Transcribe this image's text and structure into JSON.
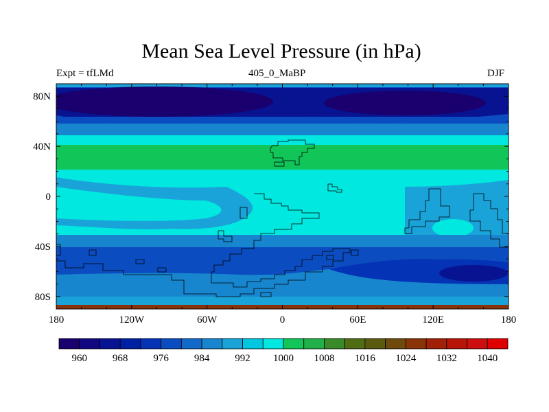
{
  "title": "Mean Sea Level Pressure (in hPa)",
  "subtitle_left": "Expt = tfLMd",
  "subtitle_center": "405_0_MaBP",
  "subtitle_right": "DJF",
  "map": {
    "projection": "cylindrical-equidistant",
    "lon_range": [
      -180,
      180
    ],
    "lat_range": [
      -90,
      90
    ],
    "x_tick_labels": [
      "180",
      "120W",
      "60W",
      "0",
      "60E",
      "120E",
      "180"
    ],
    "y_tick_labels": [
      "80N",
      "40N",
      "0",
      "40S",
      "80S"
    ],
    "field": "mean sea level pressure",
    "units": "hPa"
  },
  "colorbar": {
    "labels": [
      "960",
      "968",
      "976",
      "984",
      "992",
      "1000",
      "1008",
      "1016",
      "1024",
      "1032",
      "1040"
    ],
    "colors": [
      "#1a006e",
      "#110780",
      "#081391",
      "#0020a3",
      "#0433b5",
      "#0b4dc0",
      "#1169c9",
      "#1786cf",
      "#1aa3d8",
      "#00c7e0",
      "#00e8e0",
      "#11c558",
      "#21b04a",
      "#3b8a2a",
      "#506d14",
      "#5b5b10",
      "#6e4a0c",
      "#8a3208",
      "#a02008",
      "#b81408",
      "#cc0e0e",
      "#e00000"
    ]
  }
}
